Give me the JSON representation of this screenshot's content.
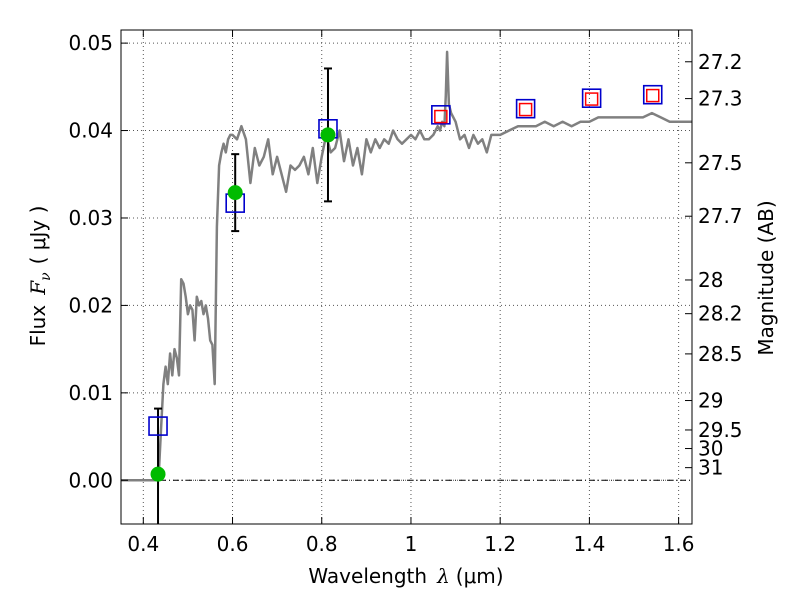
{
  "chart_data": {
    "type": "scatter",
    "xlabel_prefix": "Wavelength",
    "xlabel_symbol": "λ",
    "xlabel_unit": "(μm)",
    "ylabel_prefix": "Flux",
    "ylabel_symbol": "F",
    "ylabel_subscript": "ν",
    "ylabel_unit": "( μJy )",
    "y2label": "Magnitude (AB)",
    "xlim": [
      0.35,
      1.63
    ],
    "ylim": [
      -0.005,
      0.0515
    ],
    "x_ticks": [
      0.4,
      0.6,
      0.8,
      1.0,
      1.2,
      1.4,
      1.6
    ],
    "x_tick_labels": [
      "0.4",
      "0.6",
      "0.8",
      "1",
      "1.2",
      "1.4",
      "1.6"
    ],
    "y_ticks": [
      0.0,
      0.01,
      0.02,
      0.03,
      0.04,
      0.05
    ],
    "y_tick_labels": [
      "0.00",
      "0.01",
      "0.02",
      "0.03",
      "0.04",
      "0.05"
    ],
    "mag_ticks": [
      27.2,
      27.3,
      27.5,
      27.7,
      28,
      28.2,
      28.5,
      29,
      29.5,
      30,
      31
    ],
    "mag_tick_labels": [
      "27.2",
      "27.3",
      "27.5",
      "27.7",
      "28",
      "28.2",
      "28.5",
      "29",
      "29.5",
      "30",
      "31"
    ],
    "grid": true,
    "zero_line": true,
    "colors": {
      "spectrum": "#808080",
      "model_box": "#0000cc",
      "observed": "#00bb00",
      "predicted": "#ff0000",
      "errorbar": "#000000"
    },
    "series": [
      {
        "name": "model spectrum",
        "kind": "line",
        "x": [
          0.35,
          0.43,
          0.435,
          0.44,
          0.445,
          0.45,
          0.455,
          0.46,
          0.465,
          0.47,
          0.475,
          0.48,
          0.485,
          0.49,
          0.495,
          0.5,
          0.505,
          0.51,
          0.515,
          0.52,
          0.525,
          0.53,
          0.535,
          0.54,
          0.545,
          0.55,
          0.555,
          0.56,
          0.565,
          0.57,
          0.575,
          0.58,
          0.585,
          0.59,
          0.595,
          0.6,
          0.61,
          0.62,
          0.63,
          0.64,
          0.65,
          0.66,
          0.67,
          0.68,
          0.69,
          0.7,
          0.71,
          0.72,
          0.73,
          0.74,
          0.75,
          0.76,
          0.77,
          0.78,
          0.79,
          0.8,
          0.81,
          0.82,
          0.83,
          0.84,
          0.85,
          0.86,
          0.87,
          0.88,
          0.89,
          0.9,
          0.91,
          0.92,
          0.93,
          0.94,
          0.95,
          0.96,
          0.97,
          0.98,
          0.99,
          1.0,
          1.01,
          1.02,
          1.03,
          1.04,
          1.05,
          1.06,
          1.065,
          1.07,
          1.075,
          1.078,
          1.081,
          1.085,
          1.09,
          1.1,
          1.11,
          1.12,
          1.13,
          1.14,
          1.15,
          1.16,
          1.17,
          1.18,
          1.19,
          1.2,
          1.22,
          1.24,
          1.26,
          1.28,
          1.3,
          1.32,
          1.34,
          1.36,
          1.38,
          1.4,
          1.42,
          1.44,
          1.46,
          1.48,
          1.5,
          1.52,
          1.54,
          1.56,
          1.58,
          1.6,
          1.63
        ],
        "y": [
          0.0,
          0.0,
          0.001,
          0.006,
          0.011,
          0.013,
          0.011,
          0.0145,
          0.012,
          0.015,
          0.014,
          0.012,
          0.023,
          0.0225,
          0.021,
          0.019,
          0.02,
          0.0195,
          0.016,
          0.021,
          0.02,
          0.0205,
          0.019,
          0.02,
          0.0185,
          0.016,
          0.0155,
          0.011,
          0.029,
          0.036,
          0.0375,
          0.0385,
          0.0375,
          0.039,
          0.0395,
          0.0395,
          0.039,
          0.0405,
          0.039,
          0.034,
          0.038,
          0.036,
          0.037,
          0.039,
          0.035,
          0.037,
          0.035,
          0.033,
          0.036,
          0.0355,
          0.036,
          0.037,
          0.035,
          0.038,
          0.034,
          0.037,
          0.0395,
          0.0375,
          0.038,
          0.04,
          0.0365,
          0.039,
          0.036,
          0.038,
          0.035,
          0.039,
          0.0375,
          0.039,
          0.038,
          0.039,
          0.0385,
          0.04,
          0.039,
          0.0385,
          0.039,
          0.0395,
          0.039,
          0.04,
          0.039,
          0.039,
          0.0395,
          0.0405,
          0.04,
          0.041,
          0.0405,
          0.044,
          0.049,
          0.043,
          0.042,
          0.041,
          0.039,
          0.0395,
          0.038,
          0.0395,
          0.0385,
          0.039,
          0.0375,
          0.0395,
          0.0395,
          0.0395,
          0.04,
          0.0405,
          0.0405,
          0.0405,
          0.041,
          0.0405,
          0.041,
          0.0405,
          0.041,
          0.041,
          0.0415,
          0.0415,
          0.0415,
          0.0415,
          0.0415,
          0.0415,
          0.042,
          0.0415,
          0.041,
          0.041,
          0.041
        ]
      },
      {
        "name": "model photometry",
        "kind": "square",
        "x": [
          0.433,
          0.606,
          0.814,
          1.067,
          1.257,
          1.405,
          1.542
        ],
        "y": [
          0.0062,
          0.0317,
          0.0402,
          0.0418,
          0.0425,
          0.0437,
          0.0441
        ]
      },
      {
        "name": "observed photometry",
        "kind": "circle",
        "x": [
          0.433,
          0.606,
          0.814
        ],
        "y": [
          0.0007,
          0.0329,
          0.0395
        ],
        "yerr": [
          0.0075,
          0.0044,
          0.0076
        ]
      },
      {
        "name": "predicted photometry",
        "kind": "small-square",
        "x": [
          1.067,
          1.257,
          1.405,
          1.542
        ],
        "y": [
          0.0416,
          0.0424,
          0.0436,
          0.044
        ]
      }
    ]
  }
}
